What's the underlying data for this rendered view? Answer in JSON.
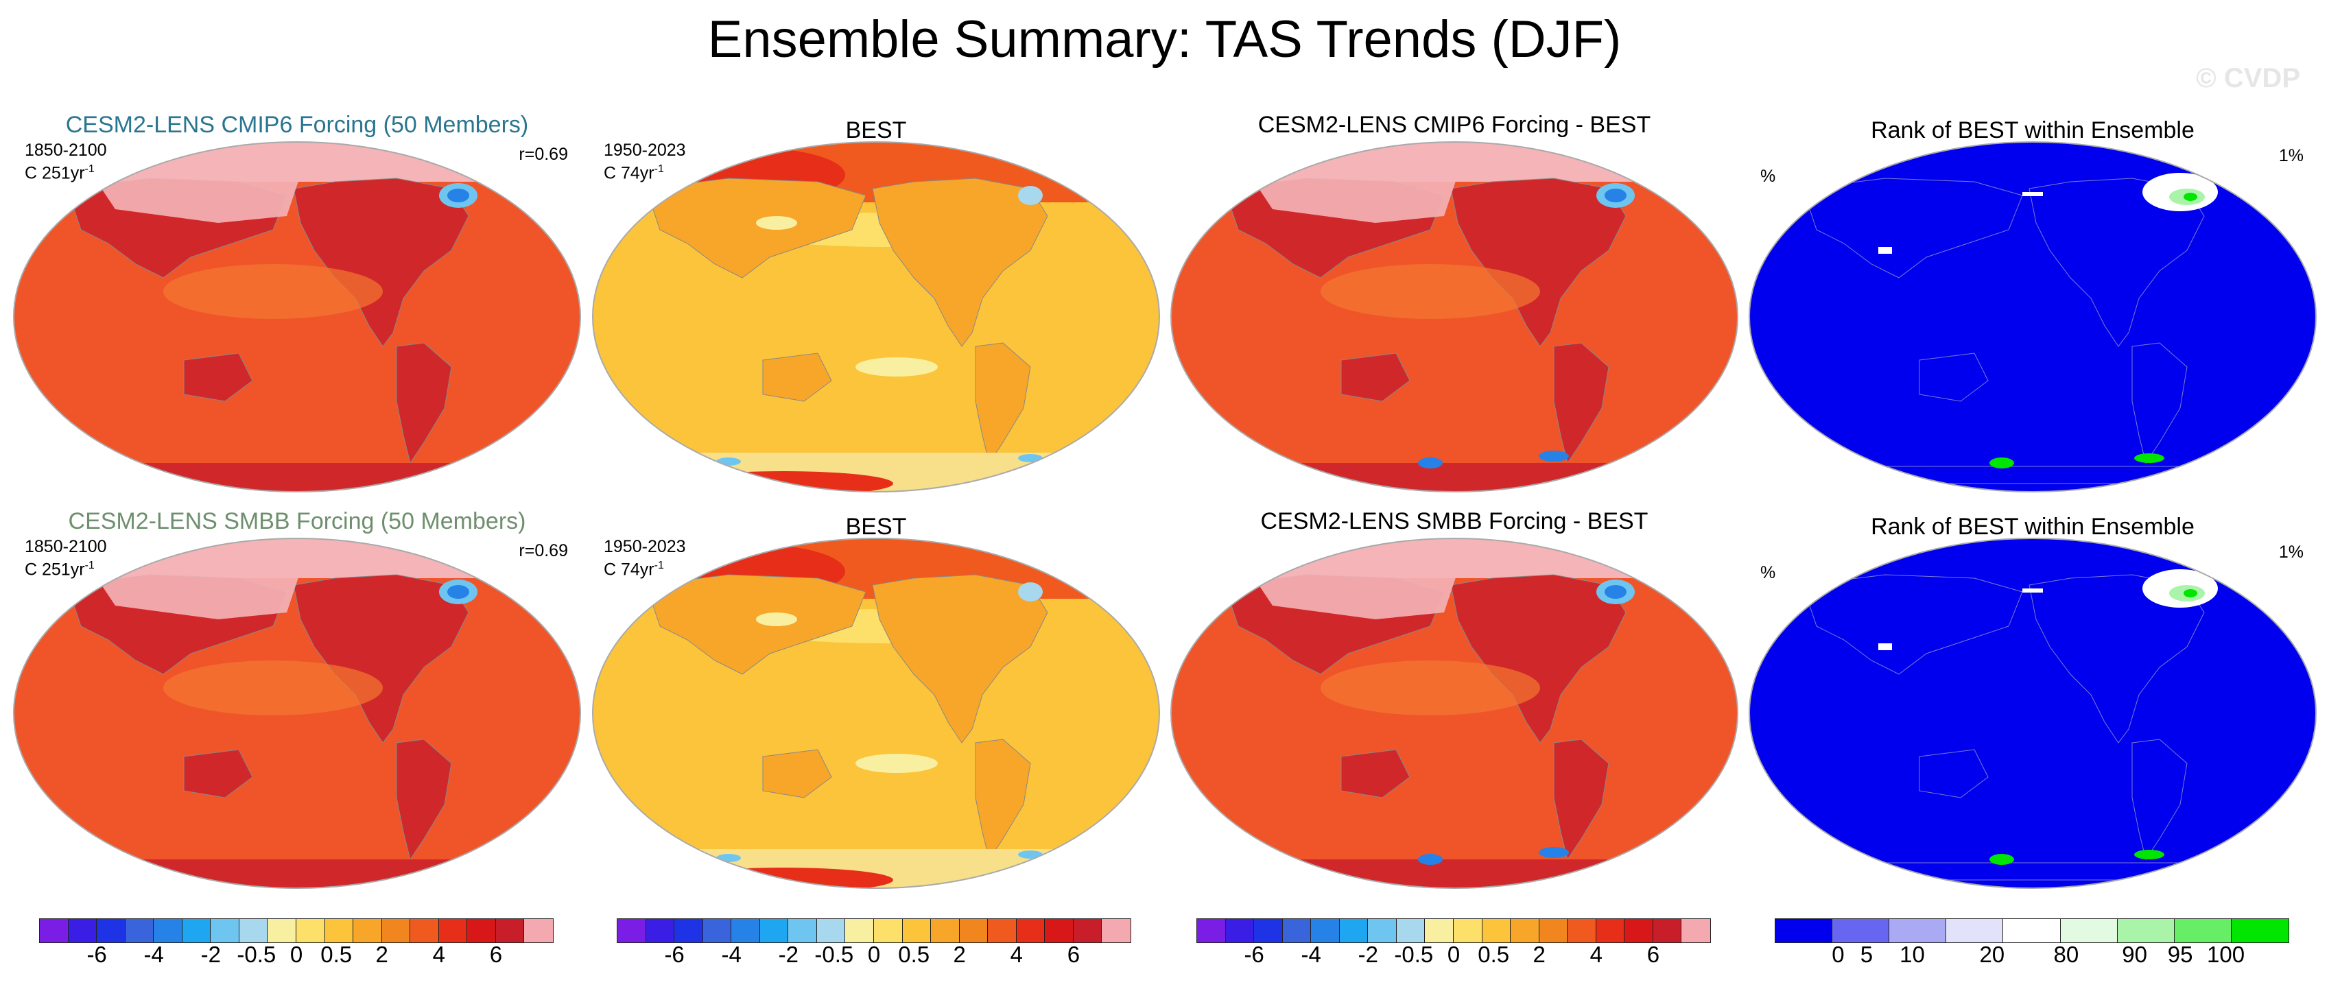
{
  "title": "Ensemble Summary: TAS Trends (DJF)",
  "watermark": "© CVDP",
  "colors": {
    "ens_title_cmip6": "#2a7590",
    "ens_title_smbb": "#6e8f6e",
    "ocean_warm": "#f0552a",
    "land_dark": "#d0282a",
    "arctic": "#f4b4b8",
    "best_base": "#fbc43a",
    "rank_blue": "#0000ee"
  },
  "panels": [
    {
      "title": "CESM2-LENS CMIP6 Forcing (50 Members)",
      "left_line1": "1850-2100",
      "left_line2": "C 251yr",
      "left_sup": "-1",
      "right": "r=0.69",
      "map": "ensemble"
    },
    {
      "title": "BEST",
      "left_line1": "1950-2023",
      "left_line2": "C 74yr",
      "left_sup": "-1",
      "right": "",
      "map": "best"
    },
    {
      "title": "CESM2-LENS CMIP6 Forcing - BEST",
      "left_line1": "",
      "left_line2": "",
      "left_sup": "",
      "right": "",
      "map": "difference"
    },
    {
      "title": "Rank of BEST within Ensemble",
      "left_line1": "%",
      "left_line2": "",
      "left_sup": "",
      "right": "1%",
      "map": "rank"
    },
    {
      "title": "CESM2-LENS SMBB Forcing (50 Members)",
      "left_line1": "1850-2100",
      "left_line2": "C 251yr",
      "left_sup": "-1",
      "right": "r=0.69",
      "map": "ensemble"
    },
    {
      "title": "BEST",
      "left_line1": "1950-2023",
      "left_line2": "C 74yr",
      "left_sup": "-1",
      "right": "",
      "map": "best"
    },
    {
      "title": "CESM2-LENS SMBB Forcing - BEST",
      "left_line1": "",
      "left_line2": "",
      "left_sup": "",
      "right": "",
      "map": "difference"
    },
    {
      "title": "Rank of BEST within Ensemble",
      "left_line1": "%",
      "left_line2": "",
      "left_sup": "",
      "right": "1%",
      "map": "rank"
    }
  ],
  "trend_colorbar": {
    "colors": [
      "#7a1ee6",
      "#3a1ee6",
      "#1e32e6",
      "#3a64dc",
      "#2682e6",
      "#1ea6f0",
      "#6ec6f0",
      "#a8d8ee",
      "#f8f0a0",
      "#fce06a",
      "#fbc43a",
      "#f8a62a",
      "#f2861e",
      "#f05a1e",
      "#e62e18",
      "#d81818",
      "#c81e2a",
      "#f4a8b0"
    ],
    "labels": [
      "-6",
      "-4",
      "-2",
      "-0.5",
      "0",
      "0.5",
      "2",
      "4",
      "6"
    ]
  },
  "rank_colorbar": {
    "colors": [
      "#0000ee",
      "#6666f0",
      "#aaaaf4",
      "#e2e2fa",
      "#ffffff",
      "#e2fae2",
      "#aaf4aa",
      "#66ee66",
      "#00e600"
    ],
    "labels": [
      "0",
      "5",
      "10",
      "20",
      "80",
      "90",
      "95",
      "100"
    ]
  }
}
